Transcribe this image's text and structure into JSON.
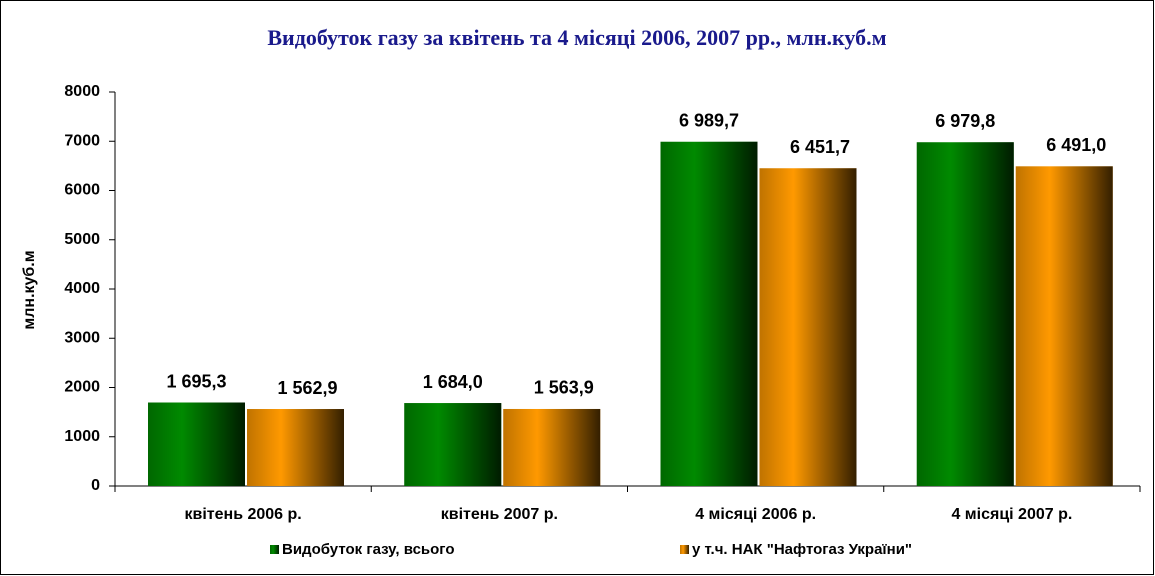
{
  "chart_data": {
    "type": "bar",
    "title": "Видобуток газу за квітень та 4 місяці 2006, 2007 рр.,  млн.куб.м",
    "y_label": "млн.куб.м",
    "categories": [
      "квітень 2006 р.",
      "квітень 2007 р.",
      "4 місяці 2006 р.",
      "4 місяці 2007 р."
    ],
    "series": [
      {
        "name": "Видобуток газу, всього",
        "color": "#008a00",
        "values": [
          1695.3,
          1684.0,
          6989.7,
          6979.8
        ],
        "value_labels": [
          "1 695,3",
          "1 684,0",
          "6 989,7",
          "6 979,8"
        ]
      },
      {
        "name": "у т.ч. НАК \"Нафтогаз України\"",
        "color": "#ff9900",
        "values": [
          1562.9,
          1563.9,
          6451.7,
          6491.0
        ],
        "value_labels": [
          "1 562,9",
          "1 563,9",
          "6 451,7",
          "6 491,0"
        ]
      }
    ],
    "ylim": [
      0,
      8000
    ],
    "yticks": [
      0,
      1000,
      2000,
      3000,
      4000,
      5000,
      6000,
      7000,
      8000
    ],
    "legend": "bottom"
  }
}
